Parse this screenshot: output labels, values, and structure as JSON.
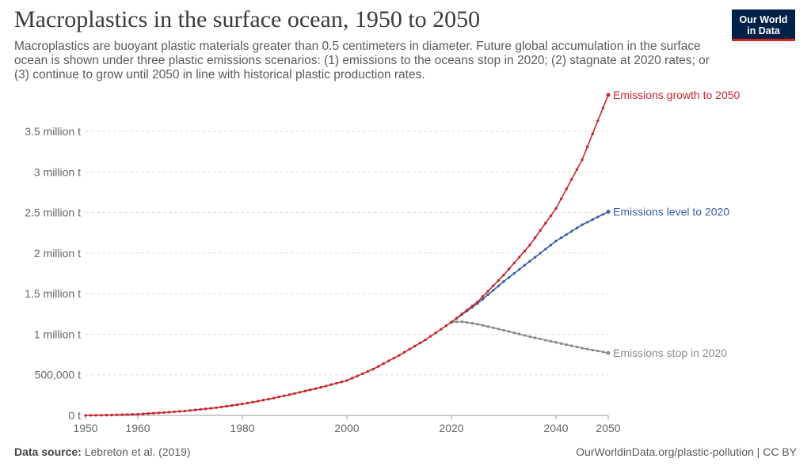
{
  "header": {
    "title": "Macroplastics in the surface ocean, 1950 to 2050",
    "subtitle": "Macroplastics are buoyant plastic materials greater than 0.5 centimeters in diameter. Future global accumulation in the surface ocean is shown under three plastic emissions scenarios: (1) emissions to the oceans stop in 2020; (2) stagnate at 2020 rates; or (3) continue to grow until 2050 in line with historical plastic production rates.",
    "logo_line1": "Our World",
    "logo_line2": "in Data"
  },
  "footer": {
    "source_label": "Data source:",
    "source_text": "Lebreton et al. (2019)",
    "url_text": "OurWorldinData.org/plastic-pollution | CC BY"
  },
  "colors": {
    "growth": "#c8272d",
    "level": "#3a60a8",
    "stop": "#8a8a8a",
    "grid": "#dddddd",
    "logo_bg": "#002147",
    "logo_accent": "#ce261e"
  },
  "chart_data": {
    "type": "line",
    "title": "Macroplastics in the surface ocean, 1950 to 2050",
    "xlabel": "",
    "ylabel": "",
    "xlim": [
      1950,
      2050
    ],
    "ylim": [
      0,
      3950000
    ],
    "grid": "horizontal",
    "y_ticks": [
      {
        "value": 0,
        "label": "0 t"
      },
      {
        "value": 500000,
        "label": "500,000 t"
      },
      {
        "value": 1000000,
        "label": "1 million t"
      },
      {
        "value": 1500000,
        "label": "1.5 million t"
      },
      {
        "value": 2000000,
        "label": "2 million t"
      },
      {
        "value": 2500000,
        "label": "2.5 million t"
      },
      {
        "value": 3000000,
        "label": "3 million t"
      },
      {
        "value": 3500000,
        "label": "3.5 million t"
      }
    ],
    "x_ticks": [
      {
        "value": 1950,
        "label": "1950"
      },
      {
        "value": 1960,
        "label": "1960"
      },
      {
        "value": 1980,
        "label": "1980"
      },
      {
        "value": 2000,
        "label": "2000"
      },
      {
        "value": 2020,
        "label": "2020"
      },
      {
        "value": 2040,
        "label": "2040"
      },
      {
        "value": 2050,
        "label": "2050"
      }
    ],
    "series": [
      {
        "name": "Emissions growth to 2050",
        "color": "#c8272d",
        "x": [
          1950,
          1955,
          1960,
          1965,
          1970,
          1975,
          1980,
          1985,
          1990,
          1995,
          2000,
          2005,
          2010,
          2015,
          2020,
          2025,
          2030,
          2035,
          2040,
          2045,
          2050
        ],
        "y": [
          0,
          5000,
          15000,
          35000,
          60000,
          95000,
          140000,
          200000,
          270000,
          345000,
          430000,
          570000,
          740000,
          930000,
          1150000,
          1400000,
          1730000,
          2100000,
          2550000,
          3150000,
          3950000
        ]
      },
      {
        "name": "Emissions level to 2020",
        "color": "#3a60a8",
        "x": [
          2020,
          2025,
          2030,
          2035,
          2040,
          2045,
          2050
        ],
        "y": [
          1150000,
          1380000,
          1650000,
          1900000,
          2150000,
          2350000,
          2510000
        ]
      },
      {
        "name": "Emissions stop in 2020",
        "color": "#8a8a8a",
        "x": [
          2020,
          2022,
          2025,
          2030,
          2035,
          2040,
          2045,
          2050
        ],
        "y": [
          1150000,
          1155000,
          1125000,
          1050000,
          970000,
          900000,
          830000,
          770000
        ]
      }
    ]
  }
}
